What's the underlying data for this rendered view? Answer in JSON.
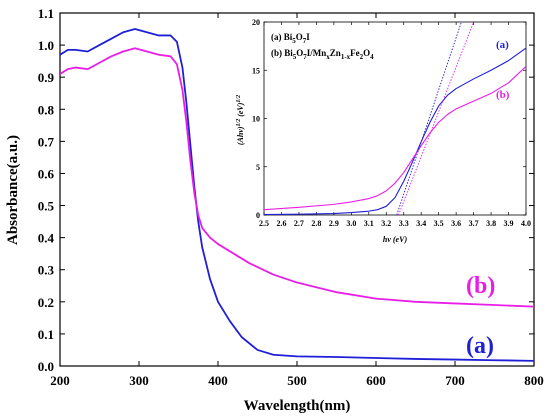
{
  "chart_data": [
    {
      "type": "line",
      "xlabel": "Wavelength(nm)",
      "ylabel": "Absorbance(a.u.)",
      "xlim": [
        200,
        800
      ],
      "ylim": [
        0.0,
        1.1
      ],
      "xticks": [
        "200",
        "300",
        "400",
        "500",
        "600",
        "700",
        "800"
      ],
      "yticks": [
        "0.0",
        "0.1",
        "0.2",
        "0.3",
        "0.4",
        "0.5",
        "0.6",
        "0.7",
        "0.8",
        "0.9",
        "1.0",
        "1.1"
      ],
      "series": [
        {
          "name": "(a)",
          "color": "#1f1fd8",
          "x": [
            200,
            210,
            220,
            235,
            250,
            265,
            280,
            295,
            310,
            325,
            340,
            348,
            355,
            360,
            365,
            370,
            375,
            380,
            390,
            400,
            415,
            430,
            450,
            470,
            500,
            550,
            600,
            650,
            700,
            750,
            800
          ],
          "y": [
            0.97,
            0.985,
            0.985,
            0.98,
            1.0,
            1.02,
            1.04,
            1.05,
            1.04,
            1.03,
            1.03,
            1.01,
            0.93,
            0.82,
            0.69,
            0.56,
            0.45,
            0.37,
            0.27,
            0.2,
            0.14,
            0.09,
            0.05,
            0.035,
            0.03,
            0.028,
            0.025,
            0.022,
            0.02,
            0.018,
            0.016
          ]
        },
        {
          "name": "(b)",
          "color": "#e81ee8",
          "x": [
            200,
            210,
            220,
            235,
            250,
            265,
            280,
            295,
            310,
            325,
            340,
            348,
            355,
            360,
            365,
            370,
            375,
            380,
            390,
            400,
            420,
            440,
            470,
            500,
            550,
            600,
            650,
            700,
            750,
            800
          ],
          "y": [
            0.91,
            0.925,
            0.93,
            0.925,
            0.945,
            0.965,
            0.98,
            0.99,
            0.98,
            0.97,
            0.965,
            0.94,
            0.86,
            0.76,
            0.64,
            0.54,
            0.47,
            0.43,
            0.4,
            0.38,
            0.35,
            0.32,
            0.285,
            0.26,
            0.23,
            0.21,
            0.2,
            0.195,
            0.19,
            0.185
          ]
        }
      ],
      "annotations": [
        {
          "text": "(b)",
          "color": "#e81ee8"
        },
        {
          "text": "(a)",
          "color": "#1f1fd8"
        }
      ]
    },
    {
      "type": "line",
      "xlabel": "hv (eV)",
      "ylabel": "(Ahv)^1/2 (eV)^1/2",
      "xlim": [
        2.5,
        4.0
      ],
      "ylim": [
        0,
        20
      ],
      "xticks": [
        "2.5",
        "2.6",
        "2.7",
        "2.8",
        "2.9",
        "3.0",
        "3.1",
        "3.2",
        "3.3",
        "3.4",
        "3.5",
        "3.6",
        "3.7",
        "3.8",
        "3.9",
        "4.0"
      ],
      "yticks": [
        "0",
        "5",
        "10",
        "15",
        "20"
      ],
      "legend": [
        "(a) Bi5O7I",
        "(b) Bi5O7I/MnxZn1-xFe2O4"
      ],
      "series": [
        {
          "name": "(a)",
          "color": "#1f1fd8",
          "x": [
            2.5,
            2.7,
            2.9,
            3.0,
            3.1,
            3.15,
            3.2,
            3.25,
            3.3,
            3.35,
            3.4,
            3.45,
            3.5,
            3.55,
            3.6,
            3.7,
            3.8,
            3.9,
            4.0
          ],
          "y": [
            0.05,
            0.08,
            0.15,
            0.25,
            0.4,
            0.55,
            0.9,
            1.8,
            3.5,
            5.5,
            7.6,
            9.6,
            11.3,
            12.4,
            13.1,
            14.1,
            15.0,
            16.0,
            17.3
          ]
        },
        {
          "name": "(b)",
          "color": "#e81ee8",
          "x": [
            2.5,
            2.7,
            2.9,
            3.0,
            3.1,
            3.15,
            3.2,
            3.25,
            3.3,
            3.35,
            3.4,
            3.45,
            3.5,
            3.55,
            3.6,
            3.7,
            3.8,
            3.9,
            4.0
          ],
          "y": [
            0.55,
            0.8,
            1.1,
            1.35,
            1.7,
            2.0,
            2.5,
            3.3,
            4.4,
            5.8,
            7.2,
            8.5,
            9.6,
            10.4,
            11.0,
            11.8,
            12.6,
            13.7,
            15.4
          ]
        },
        {
          "name": "(a) fit",
          "color": "#1f1fd8",
          "dashed": true,
          "x": [
            3.26,
            3.63
          ],
          "y": [
            0,
            20
          ]
        },
        {
          "name": "(b) fit",
          "color": "#e81ee8",
          "dashed": true,
          "x": [
            3.27,
            3.7
          ],
          "y": [
            0,
            20
          ]
        }
      ],
      "annotations": [
        {
          "text": "(a)",
          "color": "#1f1fd8"
        },
        {
          "text": "(b)",
          "color": "#e81ee8"
        }
      ]
    }
  ]
}
